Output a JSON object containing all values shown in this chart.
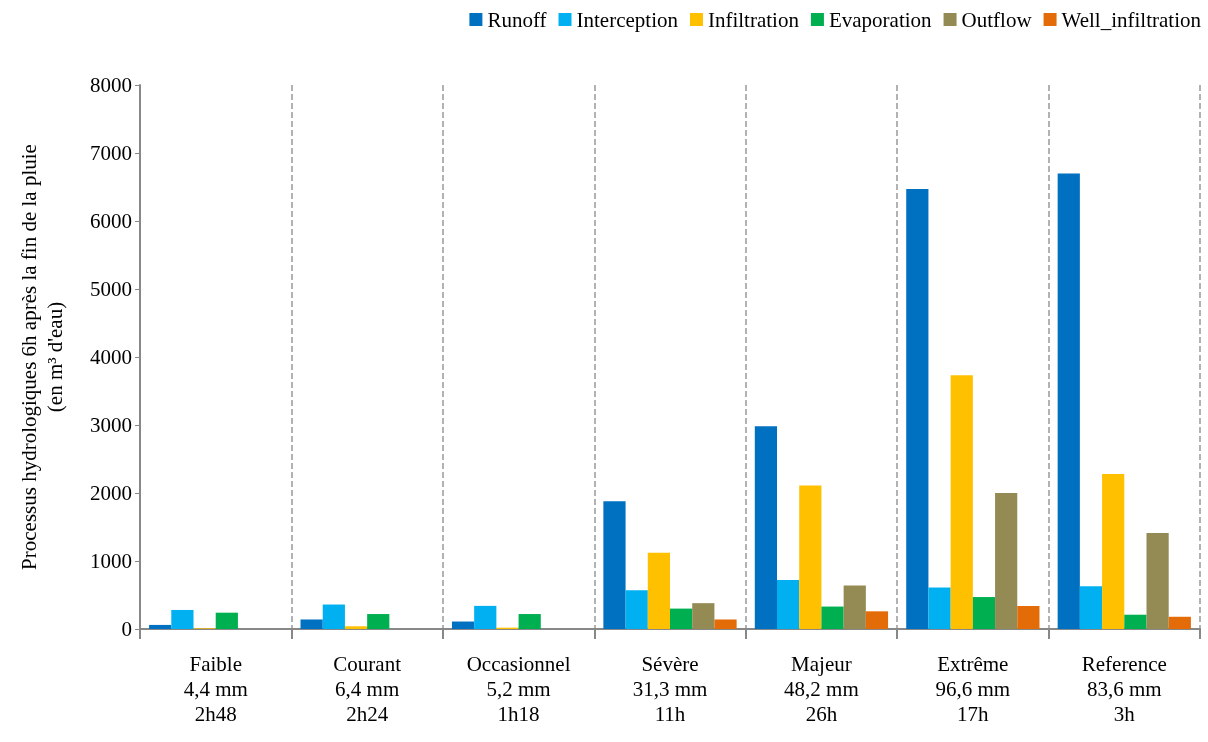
{
  "chart_data": {
    "type": "bar",
    "ylabel": "Processus hydrologiques 6h après la fin de la pluie\n(en m³ d'eau)",
    "categories": [
      "Faible\n4,4 mm\n2h48",
      "Courant\n6,4 mm\n2h24",
      "Occasionnel\n5,2 mm\n1h18",
      "Sévère\n31,3 mm\n11h",
      "Majeur\n48,2 mm\n26h",
      "Extrême\n96,6 mm\n17h",
      "Reference\n83,6 mm\n3h"
    ],
    "series": [
      {
        "name": "Runoff",
        "color": "#0070c0",
        "values": [
          60,
          140,
          110,
          1880,
          2980,
          6470,
          6700
        ]
      },
      {
        "name": "Interception",
        "color": "#00b0f0",
        "values": [
          280,
          360,
          340,
          570,
          720,
          610,
          630
        ]
      },
      {
        "name": "Infiltration",
        "color": "#ffc000",
        "values": [
          10,
          40,
          20,
          1120,
          2110,
          3730,
          2280
        ]
      },
      {
        "name": "Evaporation",
        "color": "#00b050",
        "values": [
          240,
          220,
          220,
          300,
          330,
          470,
          210
        ]
      },
      {
        "name": "Outflow",
        "color": "#948a54",
        "values": [
          0,
          0,
          0,
          380,
          640,
          2000,
          1410
        ]
      },
      {
        "name": "Well_infiltration",
        "color": "#e36c09",
        "values": [
          0,
          0,
          0,
          140,
          260,
          340,
          180
        ]
      }
    ],
    "ylim": [
      0,
      8000
    ],
    "yticks": [
      0,
      1000,
      2000,
      3000,
      4000,
      5000,
      6000,
      7000,
      8000
    ],
    "grid": "x",
    "legend": "top right"
  }
}
